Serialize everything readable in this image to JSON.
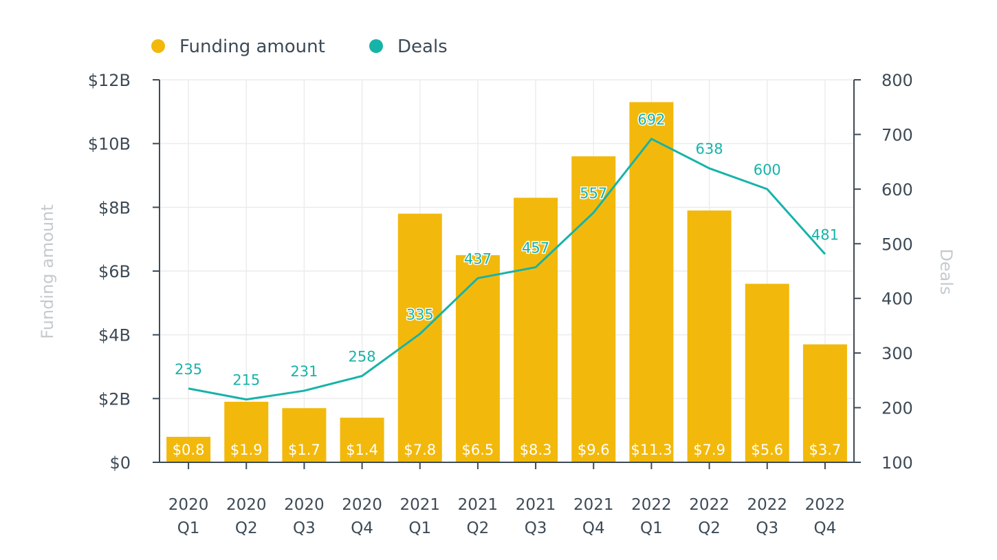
{
  "chart_data": {
    "type": "bar",
    "title": "",
    "categories": [
      [
        "2020",
        "Q1"
      ],
      [
        "2020",
        "Q2"
      ],
      [
        "2020",
        "Q3"
      ],
      [
        "2020",
        "Q4"
      ],
      [
        "2021",
        "Q1"
      ],
      [
        "2021",
        "Q2"
      ],
      [
        "2021",
        "Q3"
      ],
      [
        "2021",
        "Q4"
      ],
      [
        "2022",
        "Q1"
      ],
      [
        "2022",
        "Q2"
      ],
      [
        "2022",
        "Q3"
      ],
      [
        "2022",
        "Q4"
      ]
    ],
    "series": [
      {
        "name": "Funding amount",
        "type": "bar",
        "axis": "left",
        "color": "#f2b90c",
        "values": [
          0.8,
          1.9,
          1.7,
          1.4,
          7.8,
          6.5,
          8.3,
          9.6,
          11.3,
          7.9,
          5.6,
          3.7
        ],
        "labels": [
          "$0.8",
          "$1.9",
          "$1.7",
          "$1.4",
          "$7.8",
          "$6.5",
          "$8.3",
          "$9.6",
          "$11.3",
          "$7.9",
          "$5.6",
          "$3.7"
        ]
      },
      {
        "name": "Deals",
        "type": "line",
        "axis": "right",
        "color": "#16b3a9",
        "values": [
          235,
          215,
          231,
          258,
          335,
          437,
          457,
          557,
          692,
          638,
          600,
          481
        ],
        "labels": [
          "235",
          "215",
          "231",
          "258",
          "335",
          "437",
          "457",
          "557",
          "692",
          "638",
          "600",
          "481"
        ]
      }
    ],
    "y_left": {
      "label": "Funding amount",
      "ylim": [
        0,
        12
      ],
      "ticks": [
        0,
        2,
        4,
        6,
        8,
        10,
        12
      ],
      "tick_labels": [
        "$0",
        "$2B",
        "$4B",
        "$6B",
        "$8B",
        "$10B",
        "$12B"
      ]
    },
    "y_right": {
      "label": "Deals",
      "ylim": [
        100,
        800
      ],
      "ticks": [
        100,
        200,
        300,
        400,
        500,
        600,
        700,
        800
      ],
      "tick_labels": [
        "100",
        "200",
        "300",
        "400",
        "500",
        "600",
        "700",
        "800"
      ]
    },
    "legend": {
      "placement": "top-left",
      "entries": [
        "Funding amount",
        "Deals"
      ]
    },
    "grid": true
  }
}
